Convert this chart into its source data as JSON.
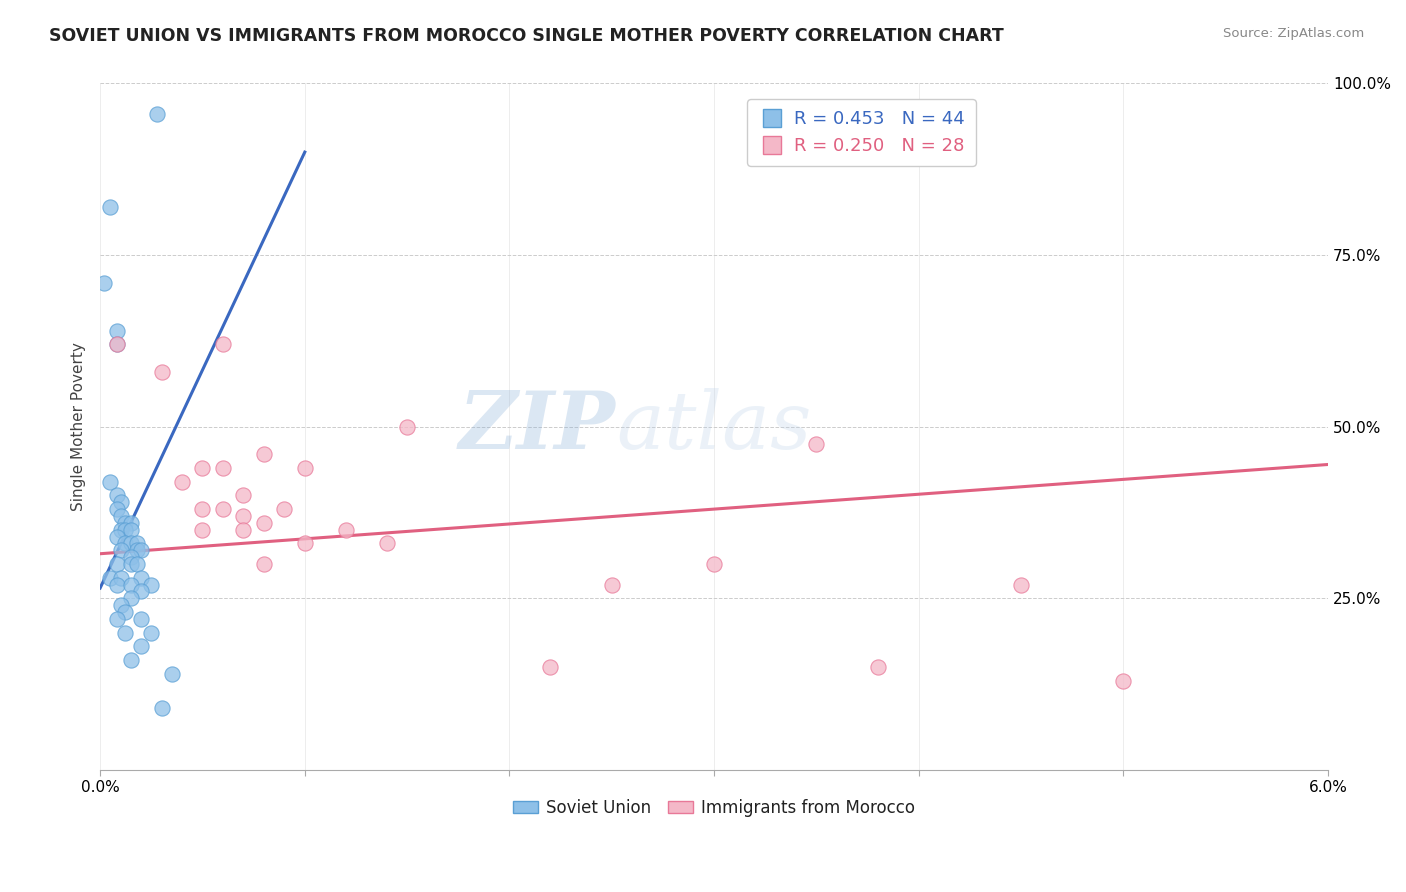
{
  "title": "SOVIET UNION VS IMMIGRANTS FROM MOROCCO SINGLE MOTHER POVERTY CORRELATION CHART",
  "source": "Source: ZipAtlas.com",
  "ylabel": "Single Mother Poverty",
  "legend_blue_label": "Soviet Union",
  "legend_pink_label": "Immigrants from Morocco",
  "blue_R": 0.453,
  "blue_N": 44,
  "pink_R": 0.25,
  "pink_N": 28,
  "xlim": [
    0.0,
    0.06
  ],
  "ylim": [
    0.0,
    1.0
  ],
  "yticks": [
    0.25,
    0.5,
    0.75,
    1.0
  ],
  "watermark_zip": "ZIP",
  "watermark_atlas": "atlas",
  "blue_color": "#8ec0e8",
  "pink_color": "#f4b8c8",
  "blue_edge_color": "#5a9fd4",
  "pink_edge_color": "#e87898",
  "blue_line_color": "#3a68c0",
  "pink_line_color": "#e06080",
  "blue_scatter": [
    [
      0.0028,
      0.955
    ],
    [
      0.0005,
      0.82
    ],
    [
      0.0002,
      0.71
    ],
    [
      0.0008,
      0.64
    ],
    [
      0.0008,
      0.62
    ],
    [
      0.0005,
      0.42
    ],
    [
      0.0008,
      0.4
    ],
    [
      0.001,
      0.39
    ],
    [
      0.0008,
      0.38
    ],
    [
      0.001,
      0.37
    ],
    [
      0.0012,
      0.36
    ],
    [
      0.0015,
      0.36
    ],
    [
      0.001,
      0.35
    ],
    [
      0.0012,
      0.35
    ],
    [
      0.0015,
      0.35
    ],
    [
      0.0008,
      0.34
    ],
    [
      0.0012,
      0.33
    ],
    [
      0.0015,
      0.33
    ],
    [
      0.0018,
      0.33
    ],
    [
      0.001,
      0.32
    ],
    [
      0.0018,
      0.32
    ],
    [
      0.002,
      0.32
    ],
    [
      0.0015,
      0.31
    ],
    [
      0.0008,
      0.3
    ],
    [
      0.0015,
      0.3
    ],
    [
      0.0018,
      0.3
    ],
    [
      0.0005,
      0.28
    ],
    [
      0.001,
      0.28
    ],
    [
      0.002,
      0.28
    ],
    [
      0.0008,
      0.27
    ],
    [
      0.0015,
      0.27
    ],
    [
      0.0025,
      0.27
    ],
    [
      0.002,
      0.26
    ],
    [
      0.0015,
      0.25
    ],
    [
      0.001,
      0.24
    ],
    [
      0.0012,
      0.23
    ],
    [
      0.0008,
      0.22
    ],
    [
      0.002,
      0.22
    ],
    [
      0.0012,
      0.2
    ],
    [
      0.0025,
      0.2
    ],
    [
      0.002,
      0.18
    ],
    [
      0.0015,
      0.16
    ],
    [
      0.0035,
      0.14
    ],
    [
      0.003,
      0.09
    ]
  ],
  "pink_scatter": [
    [
      0.035,
      0.475
    ],
    [
      0.0008,
      0.62
    ],
    [
      0.006,
      0.62
    ],
    [
      0.003,
      0.58
    ],
    [
      0.015,
      0.5
    ],
    [
      0.008,
      0.46
    ],
    [
      0.006,
      0.44
    ],
    [
      0.005,
      0.44
    ],
    [
      0.01,
      0.44
    ],
    [
      0.004,
      0.42
    ],
    [
      0.007,
      0.4
    ],
    [
      0.006,
      0.38
    ],
    [
      0.005,
      0.38
    ],
    [
      0.009,
      0.38
    ],
    [
      0.007,
      0.37
    ],
    [
      0.008,
      0.36
    ],
    [
      0.005,
      0.35
    ],
    [
      0.007,
      0.35
    ],
    [
      0.012,
      0.35
    ],
    [
      0.01,
      0.33
    ],
    [
      0.014,
      0.33
    ],
    [
      0.008,
      0.3
    ],
    [
      0.03,
      0.3
    ],
    [
      0.025,
      0.27
    ],
    [
      0.045,
      0.27
    ],
    [
      0.022,
      0.15
    ],
    [
      0.038,
      0.15
    ],
    [
      0.05,
      0.13
    ]
  ],
  "blue_regline": [
    [
      0.0,
      0.265
    ],
    [
      0.01,
      0.9
    ]
  ],
  "pink_regline": [
    [
      0.0,
      0.315
    ],
    [
      0.06,
      0.445
    ]
  ]
}
